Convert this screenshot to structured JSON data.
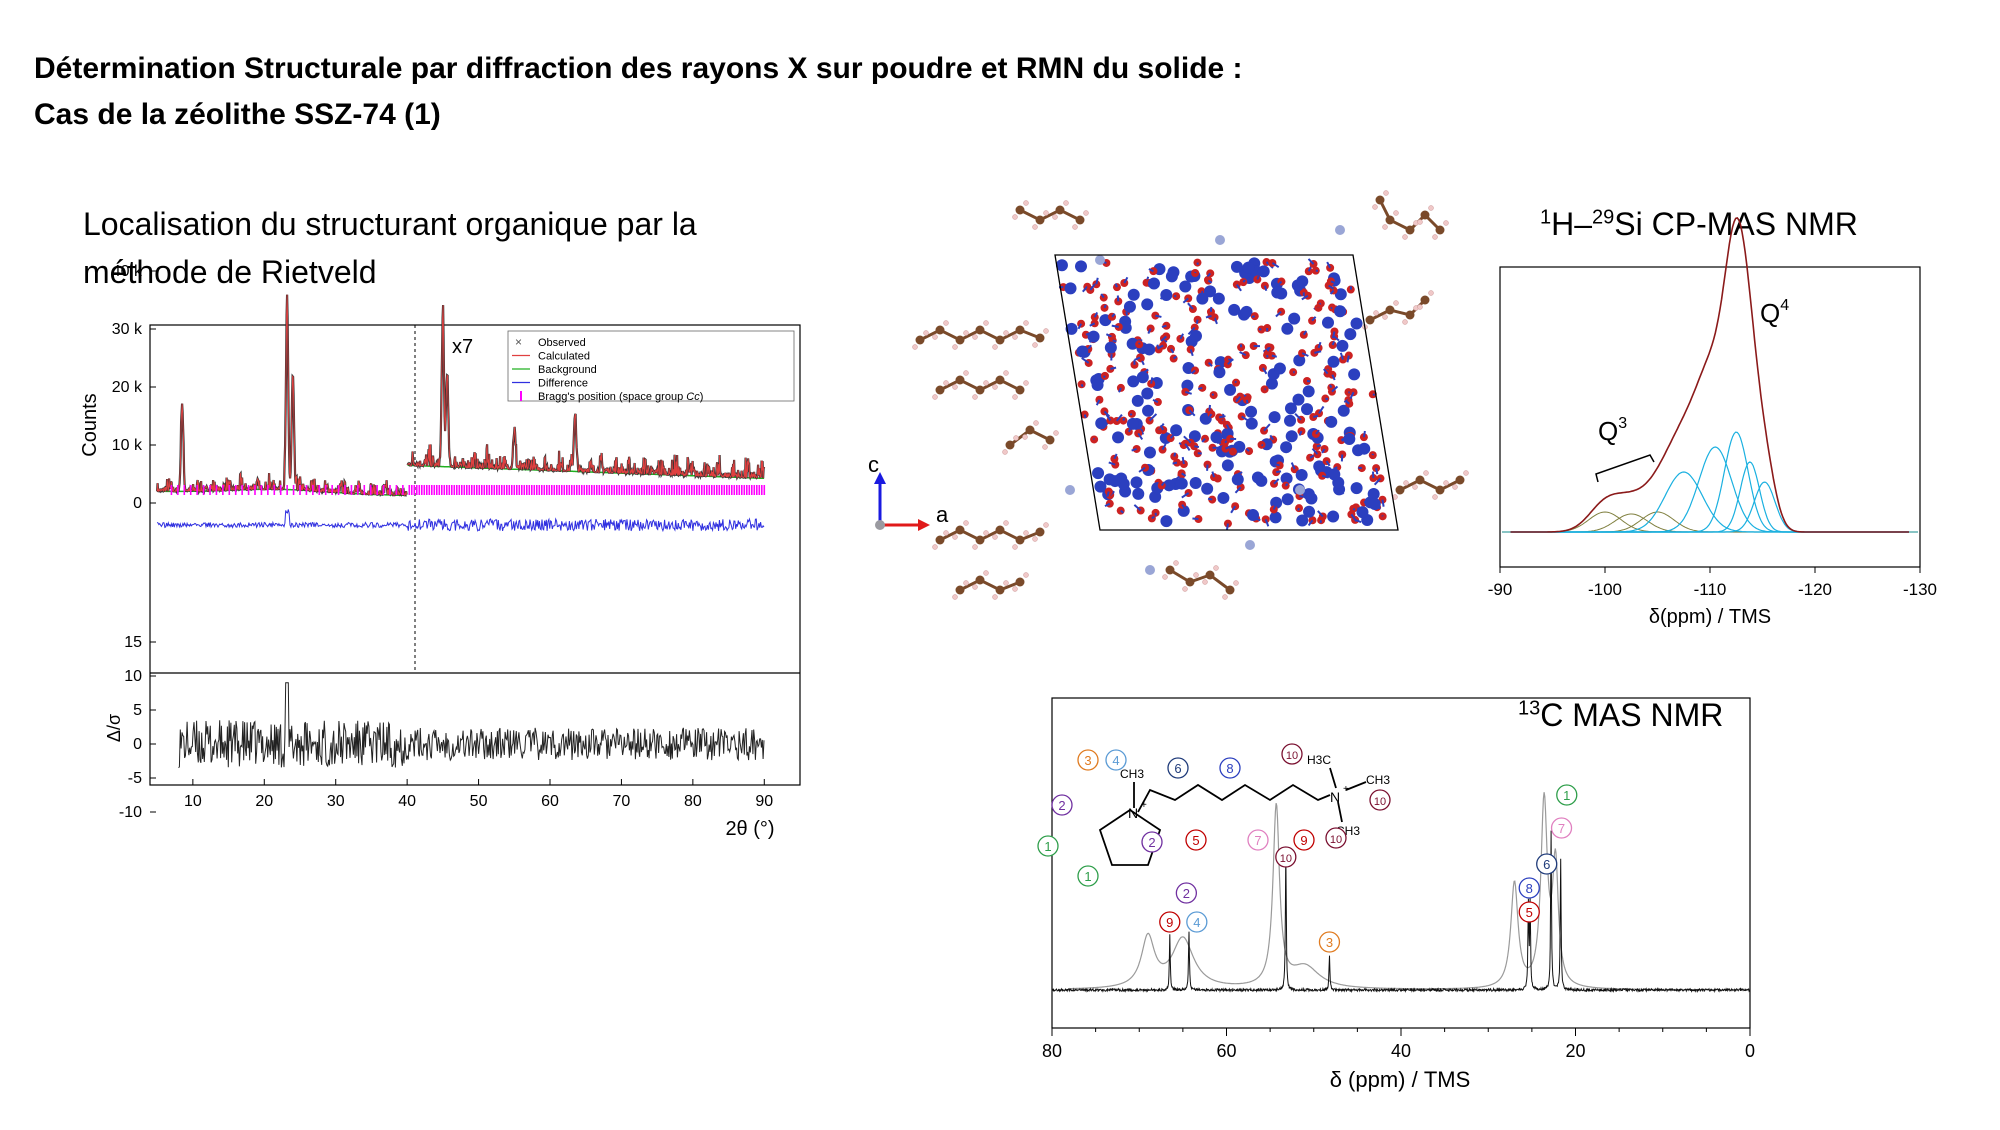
{
  "slide": {
    "title_line1": "Détermination Structurale par diffraction des rayons X sur poudre et RMN du solide :",
    "title_line2": "Cas de la zéolithe SSZ-74 (1)",
    "rietveld_caption_line1": "Localisation du structurant organique par la",
    "rietveld_caption_line2": "méthode de Rietveld"
  },
  "si_nmr": {
    "title_sup1": "1",
    "title_mid": "H–",
    "title_sup2": "29",
    "title_end": "Si CP-MAS NMR",
    "q4_label": "Q",
    "q4_sup": "4",
    "q3_label": "Q",
    "q3_sup": "3"
  },
  "c_nmr": {
    "title_sup": "13",
    "title_end": "C MAS NMR"
  },
  "crystal": {
    "axis_c": "c",
    "axis_a": "a",
    "colors": {
      "oxygen": "#cc2222",
      "silicon": "#2b3fbf",
      "carbon": "#7a4a2a",
      "hydrogen": "#f0c8c8",
      "nitrogen": "#9aa6d6"
    }
  },
  "molecule": {
    "circles": [
      {
        "num": "3",
        "color": "#e07b20"
      },
      {
        "num": "4",
        "color": "#5b9bd5"
      },
      {
        "num": "6",
        "color": "#1f3b7a"
      },
      {
        "num": "8",
        "color": "#2b3fbf"
      },
      {
        "num": "10",
        "color": "#7a1030"
      },
      {
        "num": "10",
        "color": "#7a1030"
      },
      {
        "num": "10",
        "color": "#7a1030"
      },
      {
        "num": "2",
        "color": "#7030a0"
      },
      {
        "num": "2",
        "color": "#7030a0"
      },
      {
        "num": "5",
        "color": "#c00000"
      },
      {
        "num": "7",
        "color": "#e080c0"
      },
      {
        "num": "9",
        "color": "#c00000"
      },
      {
        "num": "1",
        "color": "#2e9e4a"
      },
      {
        "num": "1",
        "color": "#2e9e4a"
      }
    ],
    "labels": {
      "ch3_left": "CH3",
      "h3c": "H3C",
      "ch3_right": "CH3",
      "ch3_bottom": "CH3",
      "n": "N",
      "n2": "N",
      "plus": "+"
    }
  },
  "chart_data": [
    {
      "type": "line",
      "name": "rietveld-xrd",
      "xlabel": "2θ (°)",
      "ylabel": "Counts",
      "xlim": [
        4,
        95
      ],
      "xticks": [
        10,
        20,
        30,
        40,
        50,
        60,
        70,
        80,
        90
      ],
      "ylim": [
        -2000,
        40000
      ],
      "yticks": [
        0,
        10000,
        20000,
        30000,
        40000
      ],
      "ytick_labels": [
        "0",
        "10 k",
        "20 k",
        "30 k",
        "40 k"
      ],
      "annotation": "x7",
      "scale_break_x": 40,
      "legend": [
        "Observed",
        "Calculated",
        "Background",
        "Difference",
        "Bragg's position (space group Cc)"
      ],
      "legend_italic": "Cc",
      "legend_position": "top-right",
      "peaks": [
        {
          "x": 8.5,
          "y": 17000
        },
        {
          "x": 23.2,
          "y": 34000
        },
        {
          "x": 24.0,
          "y": 22000
        },
        {
          "x": 45.0,
          "y": 31000
        },
        {
          "x": 45.6,
          "y": 22000
        },
        {
          "x": 55.0,
          "y": 12000
        },
        {
          "x": 63.5,
          "y": 15000
        }
      ],
      "series_colors": {
        "observed": "#333333",
        "calculated": "#e04040",
        "background": "#20b020",
        "difference": "#3030e0",
        "bragg": "#ff00ff"
      },
      "lower_panel": {
        "ylabel": "Δ/σ",
        "ylim": [
          -10,
          15
        ],
        "yticks": [
          -10,
          -5,
          0,
          5,
          10,
          15
        ]
      }
    },
    {
      "type": "line",
      "name": "si-cp-mas",
      "xlabel": "δ(ppm) / TMS",
      "xlim": [
        -90,
        -130
      ],
      "xticks": [
        -90,
        -100,
        -110,
        -120,
        -130
      ],
      "components_q4": [
        -107.5,
        -110.5,
        -112.5,
        -113.8,
        -115.2
      ],
      "components_q3": [
        -100,
        -102.5,
        -105
      ],
      "maximum_ppm": -112.5,
      "colors": {
        "experimental": "#8b1a1a",
        "q4": "#1ab0e0",
        "q3": "#808040",
        "baseline": "#40a0a0"
      }
    },
    {
      "type": "line",
      "name": "c13-mas",
      "xlabel": "δ (ppm) / TMS",
      "xlim": [
        80,
        0
      ],
      "xticks": [
        80,
        60,
        40,
        20,
        0
      ],
      "assigned_peaks": [
        {
          "ppm": 66.5,
          "label": "9"
        },
        {
          "ppm": 64.5,
          "label": "2"
        },
        {
          "ppm": 64.3,
          "label": "4"
        },
        {
          "ppm": 53.2,
          "label": "10"
        },
        {
          "ppm": 48.2,
          "label": "3"
        },
        {
          "ppm": 25.4,
          "label": "8"
        },
        {
          "ppm": 25.2,
          "label": "5"
        },
        {
          "ppm": 23.3,
          "label": "6"
        },
        {
          "ppm": 22.6,
          "label": "7"
        },
        {
          "ppm": 21.7,
          "label": "1"
        }
      ]
    }
  ]
}
